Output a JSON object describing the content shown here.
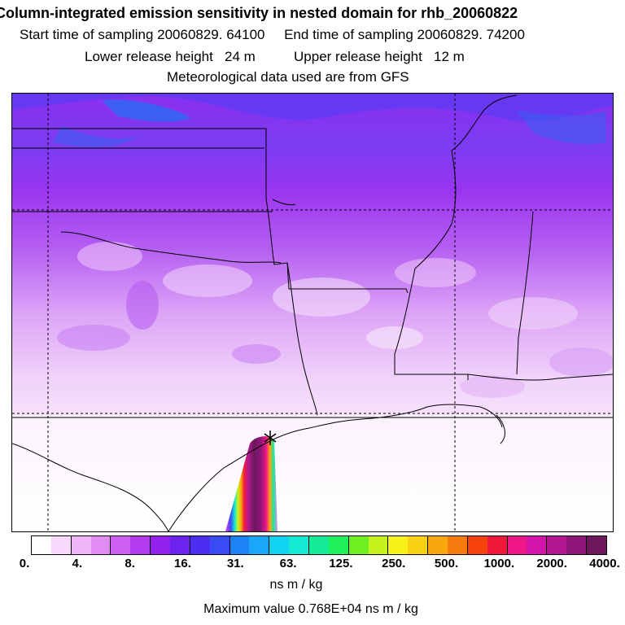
{
  "header": {
    "title": "Column-integrated emission sensitivity in nested domain for rhb_20060822",
    "line1": "Start time of sampling 20060829. 64100     End time of sampling 20060829. 74200",
    "line2": "Lower release height   24 m          Upper release height   12 m",
    "line3": "Meteorological data used are from GFS"
  },
  "colorbar": {
    "colors": [
      "#ffffff",
      "#f6d9fb",
      "#eeb5f7",
      "#e08cf3",
      "#cc5ff0",
      "#b43aee",
      "#9420ee",
      "#6e22f0",
      "#4b2ef2",
      "#3a4bf6",
      "#1c82f5",
      "#1aa7f7",
      "#11d3ef",
      "#13ecd2",
      "#14eb98",
      "#1ef05a",
      "#6ef021",
      "#c8f21e",
      "#f9f21a",
      "#fad113",
      "#f9a70f",
      "#f77a0d",
      "#f5420c",
      "#f2183b",
      "#ee1589",
      "#d214a8",
      "#b1188f",
      "#8e1678",
      "#6c175d"
    ],
    "tick_labels": [
      "0.",
      "4.",
      "8.",
      "16.",
      "31.",
      "63.",
      "125.",
      "250.",
      "500.",
      "1000.",
      "2000.",
      "4000."
    ],
    "units": "ns m / kg"
  },
  "footer": {
    "max_value": "Maximum value  0.768E+04 ns m / kg"
  },
  "colors": {
    "blue_band": "#3f67f0",
    "purple_band": "#9c2ef0",
    "lilac": "#d99af5",
    "plume_core": "#7a1266"
  }
}
